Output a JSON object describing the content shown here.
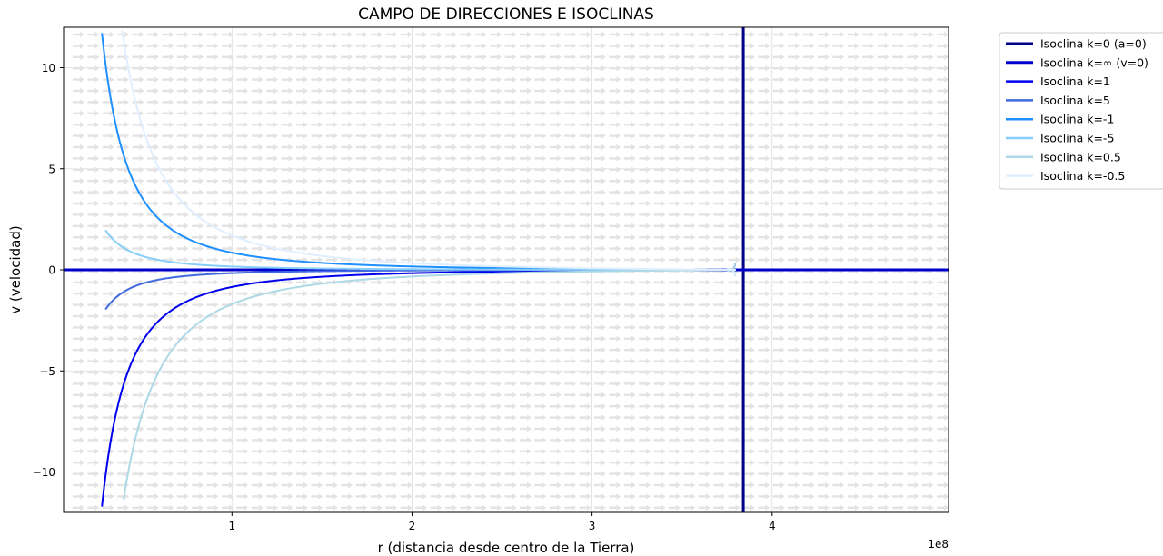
{
  "chart_data": {
    "type": "line",
    "title": "CAMPO DE DIRECCIONES E ISOCLINAS",
    "xlabel": "r (distancia desde centro de la Tierra)",
    "ylabel": "v (velocidad)",
    "x_offset_label": "1e8",
    "x_units_multiplier": 100000000,
    "xlim": [
      0.065,
      4.98
    ],
    "ylim": [
      -12,
      12
    ],
    "x_ticks": [
      1,
      2,
      3,
      4
    ],
    "x_tick_labels": [
      "1",
      "2",
      "3",
      "4"
    ],
    "y_ticks": [
      10,
      5,
      0,
      -5,
      -10
    ],
    "y_tick_labels": [
      "10",
      "5",
      "0",
      "−5",
      "−10"
    ],
    "grid": true,
    "legend_position": "outside upper right",
    "vector_field": {
      "type": "quiver",
      "color": "#e3e3e3",
      "direction": "rightward (+r)"
    },
    "series": [
      {
        "name": "Isoclina k=0 (a=0)",
        "color": "#00008b",
        "kind": "vertical",
        "x": 3.84
      },
      {
        "name": "Isoclina k=∞ (v=0)",
        "color": "#0000cd",
        "kind": "horizontal",
        "y": 0
      },
      {
        "name": "Isoclina k=1",
        "color": "#0000ee",
        "kind": "curve",
        "a": -0.91,
        "y_min": -12
      },
      {
        "name": "Isoclina k=5",
        "color": "#4169e1",
        "kind": "curve",
        "a": -0.175,
        "y_min": -2
      },
      {
        "name": "Isoclina k=-1",
        "color": "#1e90ff",
        "kind": "curve",
        "a": 0.91,
        "y_max": 12
      },
      {
        "name": "Isoclina k=-5",
        "color": "#87cefa",
        "kind": "curve",
        "a": 0.175,
        "y_max": 2
      },
      {
        "name": "Isoclina k=0.5",
        "color": "#add8e6",
        "kind": "curve",
        "a": -1.82,
        "y_min": -11.6
      },
      {
        "name": "Isoclina k=-0.5",
        "color": "#e0efff",
        "kind": "curve",
        "a": 1.82,
        "y_max": 12
      }
    ]
  }
}
